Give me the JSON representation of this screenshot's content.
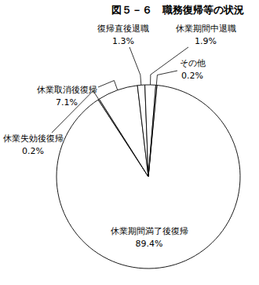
{
  "chart_data": {
    "type": "pie",
    "title": "図５－６　職務復帰等の状況",
    "categories": [
      "休業期間満了後復帰",
      "休業失効後復帰",
      "休業取消後復帰",
      "復帰直後退職",
      "休業期間中退職",
      "その他"
    ],
    "values": [
      89.4,
      0.2,
      7.1,
      1.3,
      1.9,
      0.2
    ],
    "value_labels": [
      "89.4%",
      "0.2%",
      "7.1%",
      "1.3%",
      "1.9%",
      "0.2%"
    ],
    "data_labels": true,
    "color": "#ffffff"
  }
}
